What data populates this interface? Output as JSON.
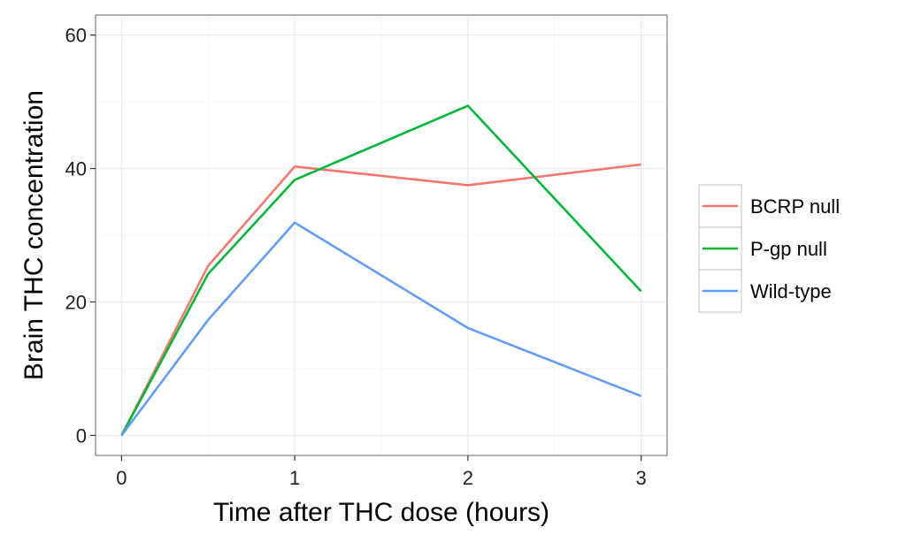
{
  "chart_data": {
    "type": "line",
    "title": "",
    "xlabel": "Time after THC dose (hours)",
    "ylabel": "Brain THC concentration",
    "xlim": [
      -0.15,
      3.15
    ],
    "ylim": [
      -3,
      63
    ],
    "xticks": [
      0,
      1,
      2,
      3
    ],
    "yticks": [
      0,
      20,
      40,
      60
    ],
    "grid": true,
    "legend_position": "right",
    "x": [
      0,
      0.5,
      1,
      2,
      3
    ],
    "series": [
      {
        "name": "BCRP null",
        "color": "#F8766D",
        "values": [
          0,
          25.4,
          40.3,
          37.5,
          40.6
        ]
      },
      {
        "name": "P-gp null",
        "color": "#00BA38",
        "values": [
          0,
          24.2,
          38.3,
          49.4,
          21.6
        ]
      },
      {
        "name": "Wild-type",
        "color": "#619CFF",
        "values": [
          0,
          17.3,
          31.9,
          16.1,
          5.9
        ]
      }
    ]
  }
}
